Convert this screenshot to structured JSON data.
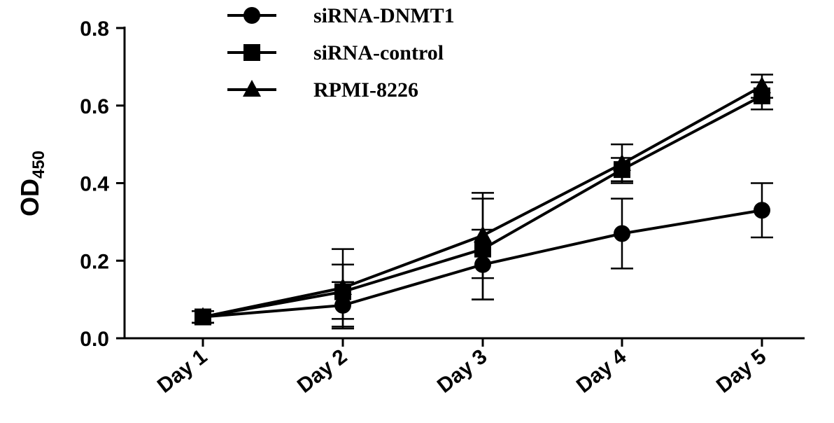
{
  "chart_data": {
    "type": "line",
    "categories": [
      "Day 1",
      "Day 2",
      "Day 3",
      "Day 4",
      "Day 5"
    ],
    "ylabel": "OD",
    "ylabel_subscript": "450",
    "xlabel": "",
    "title": "",
    "ylim": [
      0,
      0.8
    ],
    "yticks": [
      "0.0",
      "0.2",
      "0.4",
      "0.6",
      "0.8"
    ],
    "ytick_values": [
      0,
      0.2,
      0.4,
      0.6,
      0.8
    ],
    "legend_position": "top-center",
    "grid": false,
    "series": [
      {
        "name": "siRNA-DNMT1",
        "marker": "circle",
        "values": [
          0.055,
          0.085,
          0.19,
          0.27,
          0.33
        ],
        "errors": [
          0.015,
          0.06,
          0.09,
          0.09,
          0.07
        ]
      },
      {
        "name": "siRNA-control",
        "marker": "square",
        "values": [
          0.055,
          0.12,
          0.23,
          0.435,
          0.625
        ],
        "errors": [
          0.015,
          0.07,
          0.13,
          0.03,
          0.035
        ]
      },
      {
        "name": "RPMI-8226",
        "marker": "triangle",
        "values": [
          0.055,
          0.13,
          0.265,
          0.45,
          0.65
        ],
        "errors": [
          0.015,
          0.1,
          0.11,
          0.05,
          0.03
        ]
      }
    ]
  }
}
